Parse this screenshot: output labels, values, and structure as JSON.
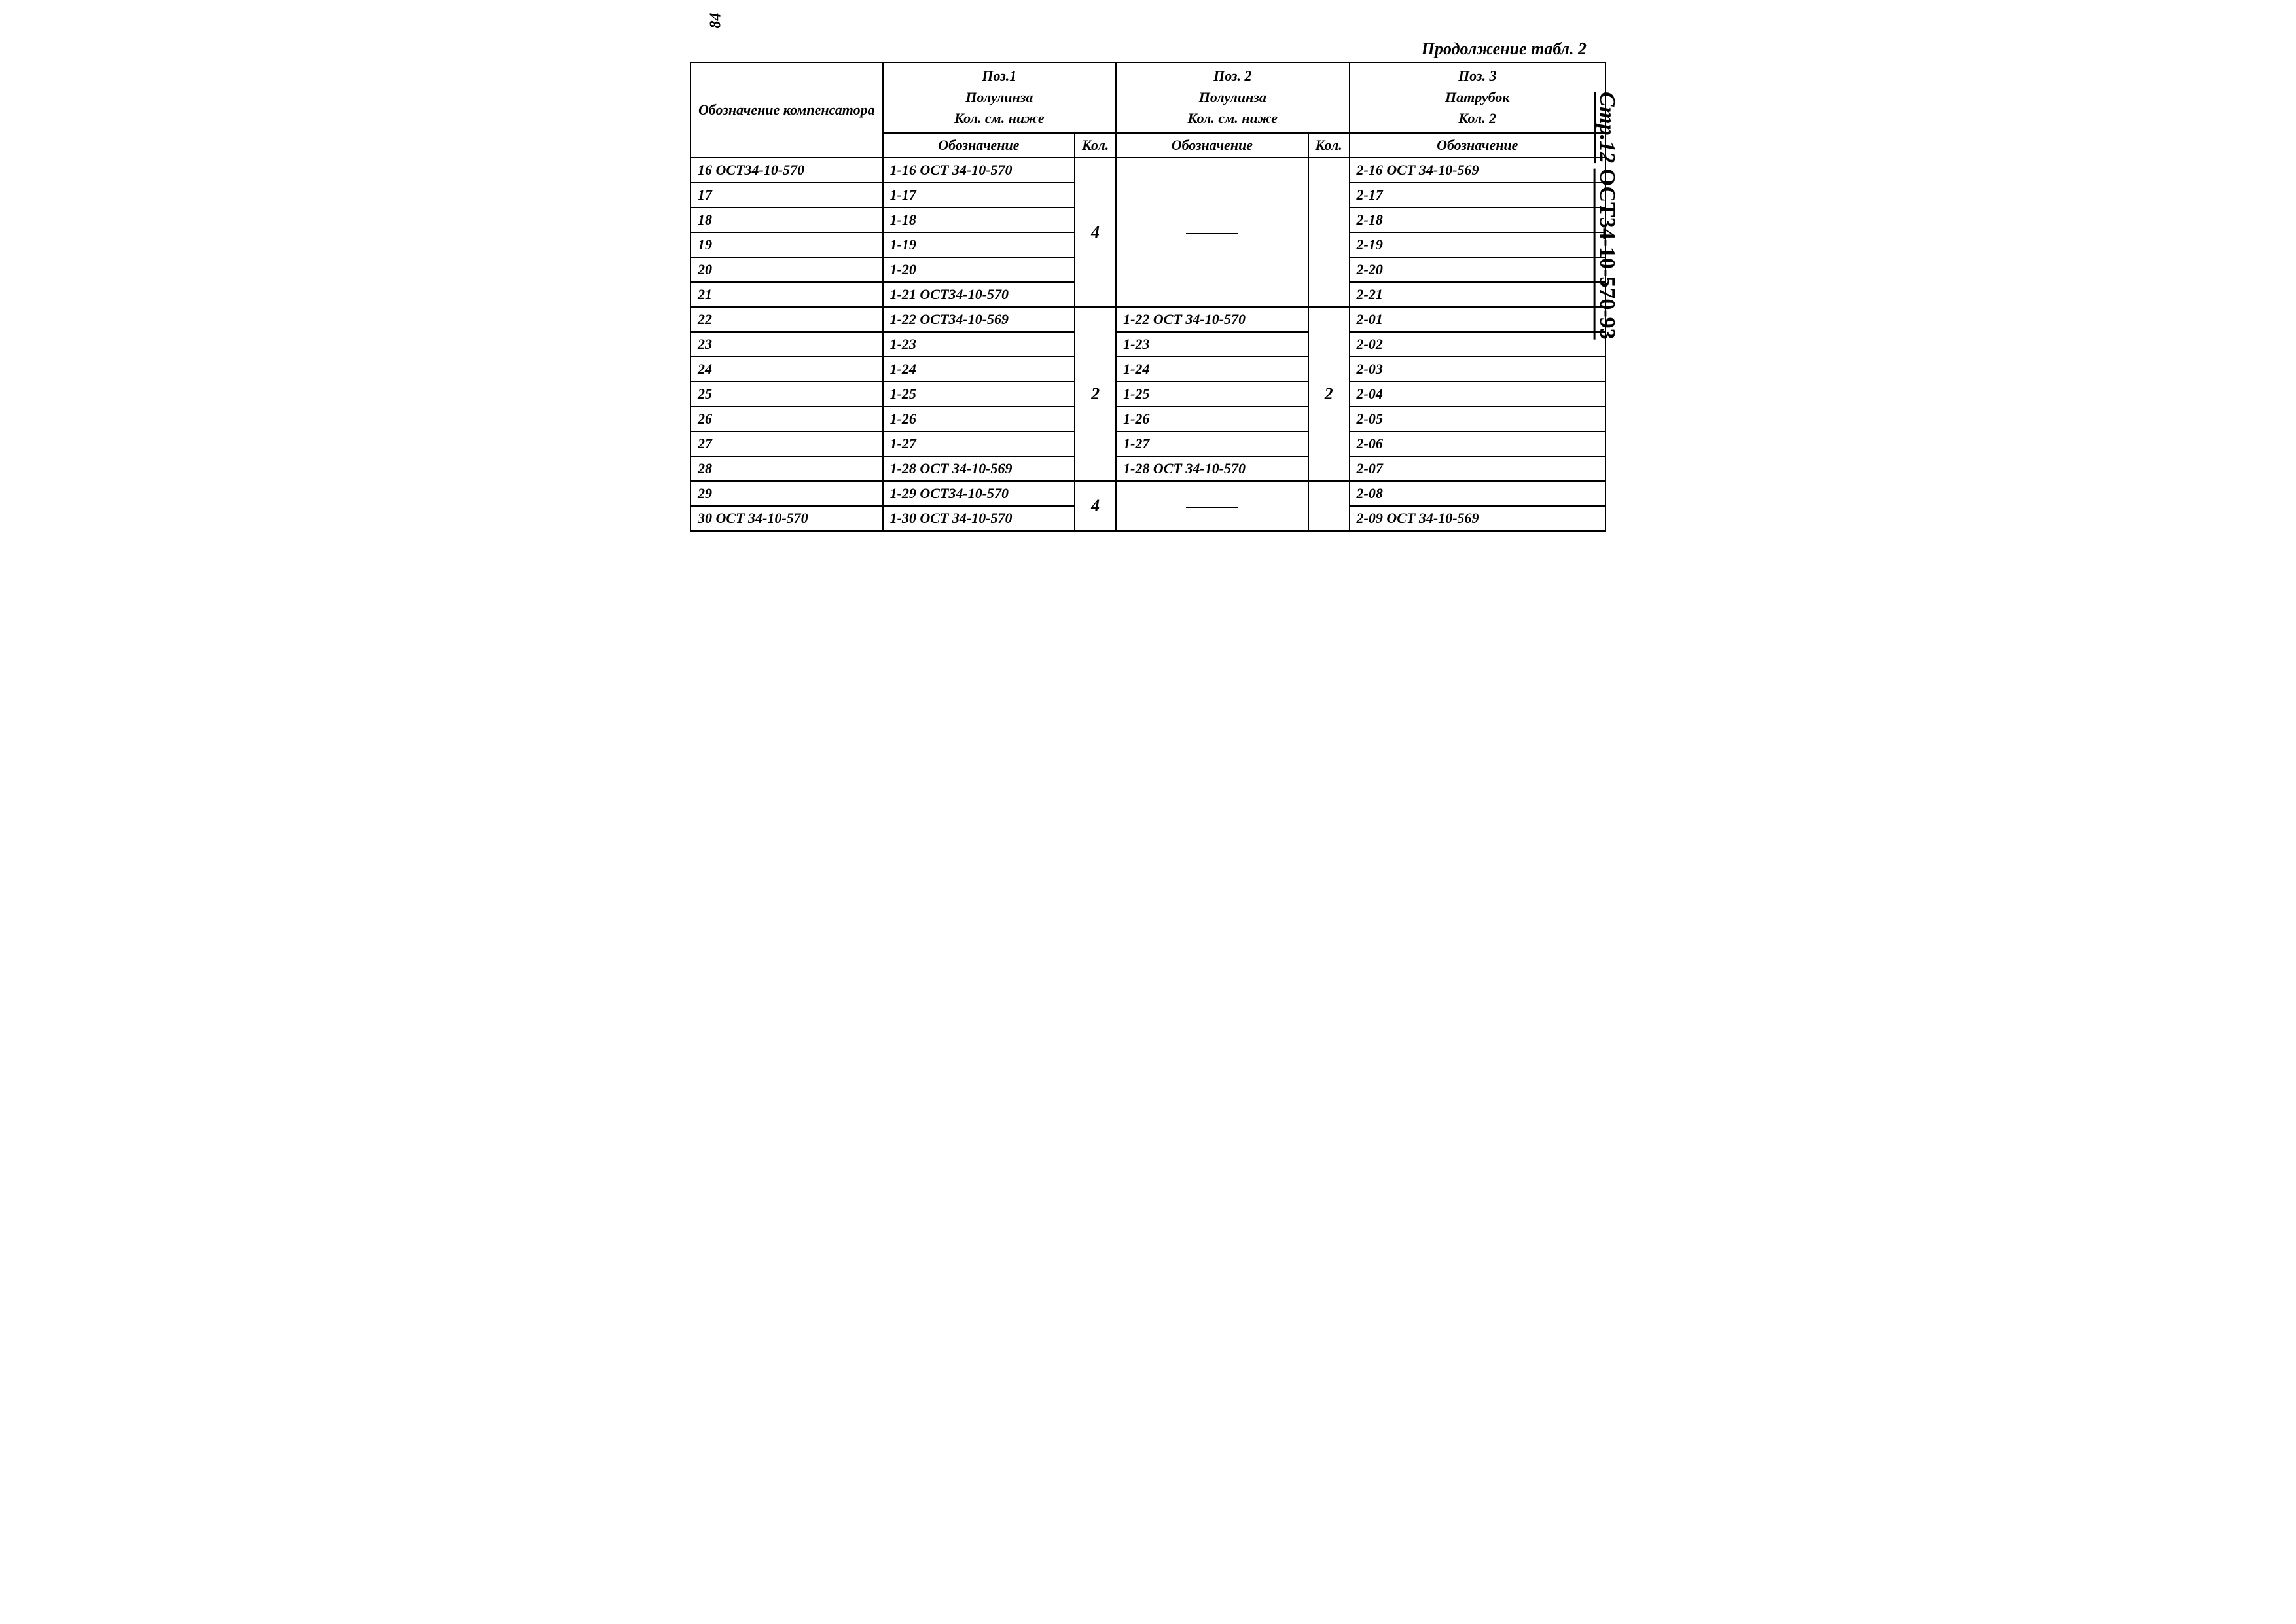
{
  "page_number_rotated": "84",
  "side_label_str": "Стр.12",
  "side_label_ost": "ОСТ34-10-570-93",
  "caption": "Продолжение табл. 2",
  "columns": {
    "designation": "Обозначение компенсатора",
    "pos1_title": "Поз.1",
    "pos1_sub": "Полулинза",
    "pos1_note": "Кол. см. ниже",
    "pos2_title": "Поз. 2",
    "pos2_sub": "Полулинза",
    "pos2_note": "Кол. см. ниже",
    "pos3_title": "Поз. 3",
    "pos3_sub": "Патрубок",
    "pos3_note": "Кол. 2",
    "designation_label": "Обозначение",
    "qty_label": "Кол."
  },
  "group1_qty": "4",
  "group2_qty_p1": "2",
  "group2_qty_p2": "2",
  "group3_qty": "4",
  "rows_g1": [
    {
      "des": "16 ОСТ34-10-570",
      "p1": "1-16 ОСТ 34-10-570",
      "p3": "2-16 ОСТ 34-10-569"
    },
    {
      "des": "17",
      "p1": "1-17",
      "p3": "2-17"
    },
    {
      "des": "18",
      "p1": "1-18",
      "p3": "2-18"
    },
    {
      "des": "19",
      "p1": "1-19",
      "p3": "2-19"
    },
    {
      "des": "20",
      "p1": "1-20",
      "p3": "2-20"
    },
    {
      "des": "21",
      "p1": "1-21 ОСТ34-10-570",
      "p3": "2-21"
    }
  ],
  "rows_g2": [
    {
      "des": "22",
      "p1": "1-22 ОСТ34-10-569",
      "p2": "1-22 ОСТ 34-10-570",
      "p3": "2-01"
    },
    {
      "des": "23",
      "p1": "1-23",
      "p2": "1-23",
      "p3": "2-02"
    },
    {
      "des": "24",
      "p1": "1-24",
      "p2": "1-24",
      "p3": "2-03"
    },
    {
      "des": "25",
      "p1": "1-25",
      "p2": "1-25",
      "p3": "2-04"
    },
    {
      "des": "26",
      "p1": "1-26",
      "p2": "1-26",
      "p3": "2-05"
    },
    {
      "des": "27",
      "p1": "1-27",
      "p2": "1-27",
      "p3": "2-06"
    },
    {
      "des": "28",
      "p1": "1-28 ОСТ 34-10-569",
      "p2": "1-28 ОСТ 34-10-570",
      "p3": "2-07"
    }
  ],
  "rows_g3": [
    {
      "des": "29",
      "p1": "1-29 ОСТ34-10-570",
      "p3": "2-08"
    },
    {
      "des": "30 ОСТ 34-10-570",
      "p1": "1-30 ОСТ 34-10-570",
      "p3": "2-09 ОСТ 34-10-569"
    }
  ]
}
